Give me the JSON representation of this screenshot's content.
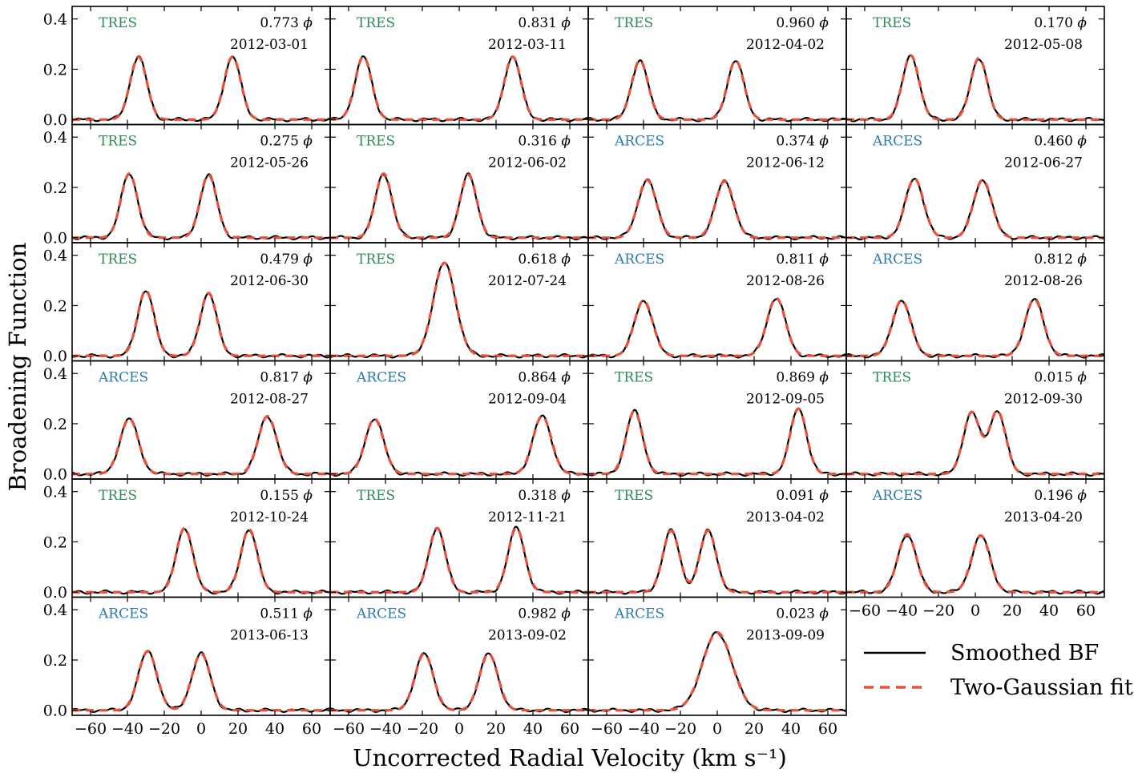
{
  "chart_data": {
    "type": "line",
    "layout": {
      "rows": 6,
      "cols": 4
    },
    "xlabel": "Uncorrected Radial Velocity (km s⁻¹)",
    "ylabel": "Broadening Function",
    "xlim": [
      -70,
      70
    ],
    "ylim": [
      -0.02,
      0.45
    ],
    "xticks": [
      -60,
      -40,
      -20,
      0,
      20,
      40,
      60
    ],
    "yticks": [
      0.0,
      0.2,
      0.4
    ],
    "ytick_labels": [
      "0.0",
      "0.2",
      "0.4"
    ],
    "legend": {
      "position": "bottom-right",
      "entries": [
        {
          "label": "Smoothed BF",
          "color": "#000000",
          "style": "solid"
        },
        {
          "label": "Two-Gaussian fit",
          "color": "#e8503a",
          "style": "dashed"
        }
      ]
    },
    "instrument_colors": {
      "TRES": "#2e8b57",
      "ARCES": "#2a7ab0"
    },
    "phase_symbol": "ϕ",
    "panels": [
      {
        "instrument": "TRES",
        "phase": "0.773",
        "date": "2012-03-01",
        "peaks": [
          {
            "center": -34,
            "amp": 0.25,
            "sigma": 4.5
          },
          {
            "center": 17,
            "amp": 0.25,
            "sigma": 4.5
          }
        ]
      },
      {
        "instrument": "TRES",
        "phase": "0.831",
        "date": "2012-03-11",
        "peaks": [
          {
            "center": -52,
            "amp": 0.25,
            "sigma": 4.5
          },
          {
            "center": 29,
            "amp": 0.25,
            "sigma": 4.5
          }
        ]
      },
      {
        "instrument": "TRES",
        "phase": "0.960",
        "date": "2012-04-02",
        "peaks": [
          {
            "center": -42,
            "amp": 0.235,
            "sigma": 4.5
          },
          {
            "center": 10,
            "amp": 0.235,
            "sigma": 4.5
          }
        ]
      },
      {
        "instrument": "TRES",
        "phase": "0.170",
        "date": "2012-05-08",
        "peaks": [
          {
            "center": -35,
            "amp": 0.255,
            "sigma": 4.5
          },
          {
            "center": 2,
            "amp": 0.245,
            "sigma": 4.5
          }
        ]
      },
      {
        "instrument": "TRES",
        "phase": "0.275",
        "date": "2012-05-26",
        "peaks": [
          {
            "center": -39,
            "amp": 0.255,
            "sigma": 4.5
          },
          {
            "center": 4,
            "amp": 0.25,
            "sigma": 4.5
          }
        ]
      },
      {
        "instrument": "TRES",
        "phase": "0.316",
        "date": "2012-06-02",
        "peaks": [
          {
            "center": -41,
            "amp": 0.255,
            "sigma": 4.5
          },
          {
            "center": 5,
            "amp": 0.25,
            "sigma": 4.5
          }
        ]
      },
      {
        "instrument": "ARCES",
        "phase": "0.374",
        "date": "2012-06-12",
        "peaks": [
          {
            "center": -38,
            "amp": 0.23,
            "sigma": 5.0
          },
          {
            "center": 4,
            "amp": 0.225,
            "sigma": 5.0
          }
        ]
      },
      {
        "instrument": "ARCES",
        "phase": "0.460",
        "date": "2012-06-27",
        "peaks": [
          {
            "center": -33,
            "amp": 0.235,
            "sigma": 5.0
          },
          {
            "center": 4,
            "amp": 0.23,
            "sigma": 5.0
          }
        ]
      },
      {
        "instrument": "TRES",
        "phase": "0.479",
        "date": "2012-06-30",
        "peaks": [
          {
            "center": -30,
            "amp": 0.26,
            "sigma": 4.5
          },
          {
            "center": 4,
            "amp": 0.25,
            "sigma": 4.5
          }
        ]
      },
      {
        "instrument": "TRES",
        "phase": "0.618",
        "date": "2012-07-24",
        "peaks": [
          {
            "center": -8,
            "amp": 0.37,
            "sigma": 6.0
          }
        ]
      },
      {
        "instrument": "ARCES",
        "phase": "0.811",
        "date": "2012-08-26",
        "peaks": [
          {
            "center": -40,
            "amp": 0.22,
            "sigma": 5.0
          },
          {
            "center": 32,
            "amp": 0.23,
            "sigma": 5.0
          }
        ]
      },
      {
        "instrument": "ARCES",
        "phase": "0.812",
        "date": "2012-08-26",
        "peaks": [
          {
            "center": -40,
            "amp": 0.22,
            "sigma": 5.0
          },
          {
            "center": 32,
            "amp": 0.225,
            "sigma": 5.0
          }
        ]
      },
      {
        "instrument": "ARCES",
        "phase": "0.817",
        "date": "2012-08-27",
        "peaks": [
          {
            "center": -39,
            "amp": 0.22,
            "sigma": 5.0
          },
          {
            "center": 36,
            "amp": 0.23,
            "sigma": 5.0
          }
        ]
      },
      {
        "instrument": "ARCES",
        "phase": "0.864",
        "date": "2012-09-04",
        "peaks": [
          {
            "center": -46,
            "amp": 0.22,
            "sigma": 5.0
          },
          {
            "center": 45,
            "amp": 0.23,
            "sigma": 5.0
          }
        ]
      },
      {
        "instrument": "TRES",
        "phase": "0.869",
        "date": "2012-09-05",
        "peaks": [
          {
            "center": -45,
            "amp": 0.25,
            "sigma": 4.5
          },
          {
            "center": 44,
            "amp": 0.26,
            "sigma": 4.5
          }
        ]
      },
      {
        "instrument": "TRES",
        "phase": "0.015",
        "date": "2012-09-30",
        "peaks": [
          {
            "center": -2,
            "amp": 0.245,
            "sigma": 4.5
          },
          {
            "center": 12,
            "amp": 0.25,
            "sigma": 4.5
          }
        ]
      },
      {
        "instrument": "TRES",
        "phase": "0.155",
        "date": "2012-10-24",
        "peaks": [
          {
            "center": -9,
            "amp": 0.255,
            "sigma": 4.5
          },
          {
            "center": 26,
            "amp": 0.25,
            "sigma": 4.5
          }
        ]
      },
      {
        "instrument": "TRES",
        "phase": "0.318",
        "date": "2012-11-21",
        "peaks": [
          {
            "center": -12,
            "amp": 0.255,
            "sigma": 4.5
          },
          {
            "center": 31,
            "amp": 0.255,
            "sigma": 4.5
          }
        ]
      },
      {
        "instrument": "TRES",
        "phase": "0.091",
        "date": "2013-04-02",
        "peaks": [
          {
            "center": -25,
            "amp": 0.245,
            "sigma": 4.5
          },
          {
            "center": -5,
            "amp": 0.245,
            "sigma": 4.5
          }
        ]
      },
      {
        "instrument": "ARCES",
        "phase": "0.196",
        "date": "2013-04-20",
        "peaks": [
          {
            "center": -37,
            "amp": 0.23,
            "sigma": 5.0
          },
          {
            "center": 3,
            "amp": 0.225,
            "sigma": 5.0
          }
        ]
      },
      {
        "instrument": "ARCES",
        "phase": "0.511",
        "date": "2013-06-13",
        "peaks": [
          {
            "center": -29,
            "amp": 0.235,
            "sigma": 5.0
          },
          {
            "center": 0,
            "amp": 0.225,
            "sigma": 5.0
          }
        ]
      },
      {
        "instrument": "ARCES",
        "phase": "0.982",
        "date": "2013-09-02",
        "peaks": [
          {
            "center": -19,
            "amp": 0.225,
            "sigma": 5.0
          },
          {
            "center": 16,
            "amp": 0.225,
            "sigma": 5.0
          }
        ]
      },
      {
        "instrument": "ARCES",
        "phase": "0.023",
        "date": "2013-09-09",
        "peaks": [
          {
            "center": 0,
            "amp": 0.31,
            "sigma": 8.0
          }
        ]
      }
    ]
  }
}
